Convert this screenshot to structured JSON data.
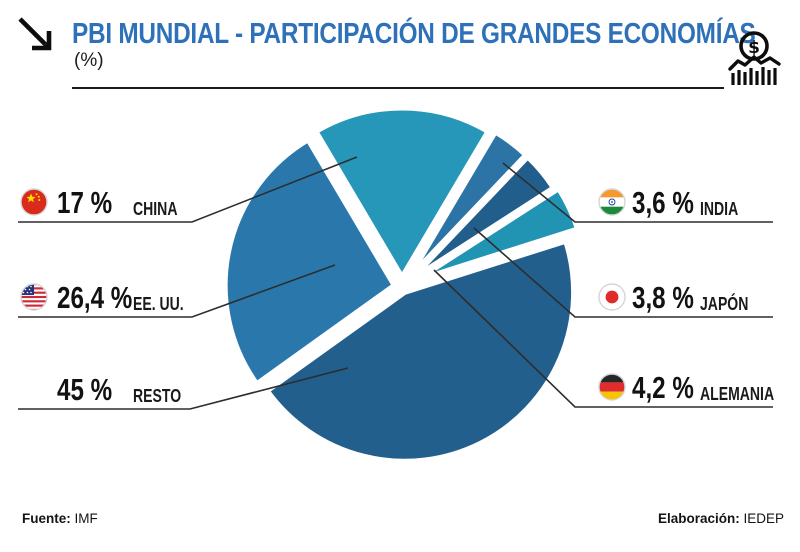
{
  "header": {
    "title": "PBI MUNDIAL - PARTICIPACIÓN DE GRANDES ECONOMÍAS",
    "unit": "(%)"
  },
  "icons": {
    "top_left": "trend-down-right-arrow-icon",
    "top_right": "coin-dollar-over-bars-icon"
  },
  "chart_data": {
    "type": "pie",
    "title": "PBI MUNDIAL - PARTICIPACIÓN DE GRANDES ECONOMÍAS",
    "unit": "%",
    "direction": "clockwise",
    "start_angle_deg": -30.6,
    "legend_position": "side-callouts",
    "slices": [
      {
        "label": "CHINA",
        "value": 17,
        "display": "17 %",
        "color": "#2697B9",
        "flag": "china",
        "side": "left"
      },
      {
        "label": "INDIA",
        "value": 3.6,
        "display": "3,6 %",
        "color": "#2C74A6",
        "flag": "india",
        "side": "right"
      },
      {
        "label": "JAPÓN",
        "value": 3.8,
        "display": "3,8 %",
        "color": "#215E8C",
        "flag": "japan",
        "side": "right"
      },
      {
        "label": "ALEMANIA",
        "value": 4.2,
        "display": "4,2 %",
        "color": "#2194B4",
        "flag": "germany",
        "side": "right"
      },
      {
        "label": "RESTO",
        "value": 45,
        "display": "45 %",
        "color": "#235F8D",
        "flag": null,
        "side": "left"
      },
      {
        "label": "EE. UU.",
        "value": 26.4,
        "display": "26,4 %",
        "color": "#2A78AB",
        "flag": "usa",
        "side": "left"
      }
    ]
  },
  "footer": {
    "source_label": "Fuente:",
    "source": "IMF",
    "elaboration_label": "Elaboración:",
    "elaboration": "IEDEP"
  }
}
